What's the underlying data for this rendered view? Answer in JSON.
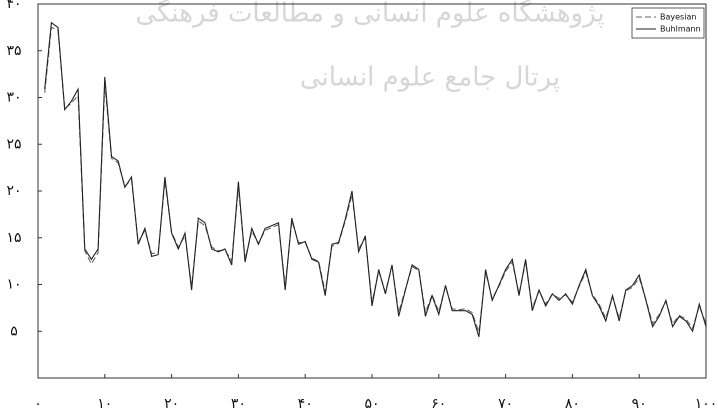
{
  "chart_data": {
    "type": "line",
    "watermark": [
      "پژوهشگاه علوم انسانی و مطالعات فرهنگی",
      "پرتال جامع علوم انسانی"
    ],
    "x": [
      1,
      2,
      3,
      4,
      5,
      6,
      7,
      8,
      9,
      10,
      11,
      12,
      13,
      14,
      15,
      16,
      17,
      18,
      19,
      20,
      21,
      22,
      23,
      24,
      25,
      26,
      27,
      28,
      29,
      30,
      31,
      32,
      33,
      34,
      35,
      36,
      37,
      38,
      39,
      40,
      41,
      42,
      43,
      44,
      45,
      46,
      47,
      48,
      49,
      50,
      51,
      52,
      53,
      54,
      55,
      56,
      57,
      58,
      59,
      60,
      61,
      62,
      63,
      64,
      65,
      66,
      67,
      68,
      69,
      70,
      71,
      72,
      73,
      74,
      75,
      76,
      77,
      78,
      79,
      80,
      81,
      82,
      83,
      84,
      85,
      86,
      87,
      88,
      89,
      90,
      91,
      92,
      93,
      94,
      95,
      96,
      97,
      98,
      99,
      100
    ],
    "series": [
      {
        "name": "Bayesian",
        "color": "#666666",
        "dash": "6,3",
        "values": [
          30.5,
          37.5,
          37.2,
          28.8,
          29.4,
          30.2,
          13.6,
          12.2,
          13.4,
          31.5,
          23.5,
          23,
          20.5,
          21.2,
          14.5,
          15.8,
          13.3,
          13.4,
          21,
          15.6,
          14,
          15.2,
          9.8,
          16.8,
          16.3,
          14,
          13.6,
          13.7,
          12.5,
          20.4,
          12.7,
          15.7,
          14.4,
          15.8,
          16.1,
          16.4,
          9.8,
          16.8,
          14.5,
          14.5,
          12.8,
          12.5,
          9.2,
          14.1,
          14.4,
          16.8,
          19.6,
          13.8,
          15,
          8.1,
          11.4,
          9.2,
          12,
          7,
          9.5,
          11.9,
          11.5,
          7,
          8.9,
          7.1,
          9.8,
          7.4,
          7.3,
          7.4,
          7,
          4.9,
          11.3,
          8.5,
          9.8,
          11.4,
          12.4,
          9,
          12.4,
          7.5,
          9.3,
          7.9,
          9,
          8.5,
          8.9,
          8.1,
          9.8,
          11.3,
          8.9,
          7.9,
          6.4,
          8.7,
          6.4,
          9.3,
          9.7,
          10.7,
          8.4,
          5.8,
          6.8,
          8.2,
          5.8,
          6.7,
          6.3,
          5.3,
          7.7,
          5.8
        ]
      },
      {
        "name": "Buhlmann",
        "color": "#222222",
        "dash": "",
        "values": [
          30.9,
          38,
          37.5,
          28.7,
          29.6,
          30.9,
          13.8,
          12.7,
          13.8,
          32.2,
          23.7,
          23.2,
          20.4,
          21.5,
          14.3,
          16,
          13,
          13.2,
          21.5,
          15.5,
          13.8,
          15.5,
          9.4,
          17.1,
          16.6,
          13.8,
          13.5,
          13.8,
          12.1,
          21,
          12.4,
          16,
          14.3,
          16,
          16.3,
          16.6,
          9.4,
          17.1,
          14.3,
          14.6,
          12.7,
          12.4,
          8.8,
          14.3,
          14.5,
          17,
          20,
          13.5,
          15.2,
          7.7,
          11.6,
          9,
          12.1,
          6.6,
          9.4,
          12.1,
          11.6,
          6.6,
          8.8,
          6.8,
          9.9,
          7.2,
          7.2,
          7.2,
          6.8,
          4.4,
          11.6,
          8.3,
          9.9,
          11.6,
          12.7,
          8.8,
          12.7,
          7.2,
          9.4,
          7.7,
          9,
          8.3,
          9,
          7.9,
          9.9,
          11.6,
          8.8,
          7.7,
          6.1,
          8.8,
          6.1,
          9.4,
          9.9,
          11,
          8.3,
          5.5,
          6.6,
          8.3,
          5.5,
          6.6,
          6.1,
          5,
          7.9,
          5.5
        ]
      }
    ],
    "xlim": [
      0,
      100
    ],
    "xticks": [
      {
        "value": 0,
        "label": "۰"
      },
      {
        "value": 10,
        "label": "۱۰"
      },
      {
        "value": 20,
        "label": "۲۰"
      },
      {
        "value": 30,
        "label": "۳۰"
      },
      {
        "value": 40,
        "label": "۴۰"
      },
      {
        "value": 50,
        "label": "۵۰"
      },
      {
        "value": 60,
        "label": "۶۰"
      },
      {
        "value": 70,
        "label": "۷۰"
      },
      {
        "value": 80,
        "label": "۸۰"
      },
      {
        "value": 90,
        "label": "۹۰"
      },
      {
        "value": 100,
        "label": "۱۰۰"
      }
    ],
    "ylim": [
      0,
      40
    ],
    "yticks": [
      {
        "value": 5,
        "label": "۵"
      },
      {
        "value": 10,
        "label": "۱۰"
      },
      {
        "value": 15,
        "label": "۱۵"
      },
      {
        "value": 20,
        "label": "۲۰"
      },
      {
        "value": 25,
        "label": "۲۵"
      },
      {
        "value": 30,
        "label": "۳۰"
      },
      {
        "value": 35,
        "label": "۳۵"
      },
      {
        "value": 40,
        "label": "۴۰"
      }
    ],
    "legend": "top-right",
    "grid": false
  }
}
